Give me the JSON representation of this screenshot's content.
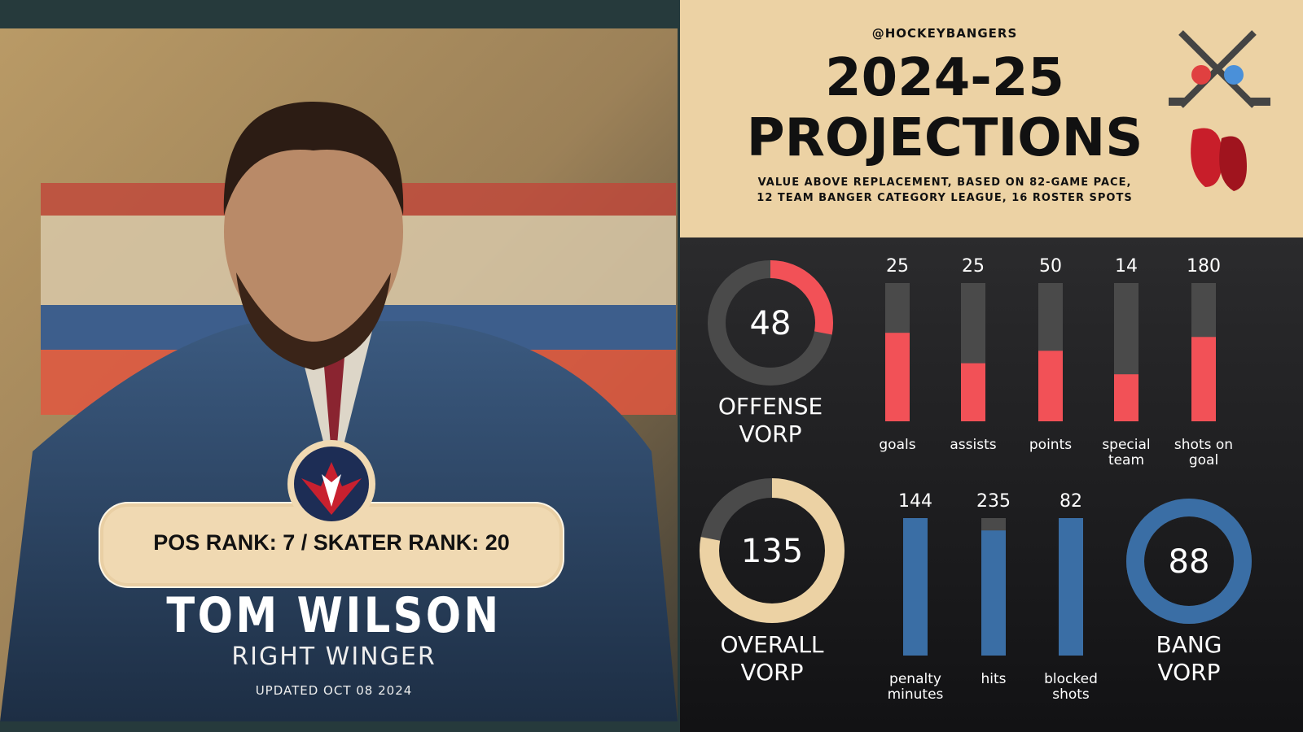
{
  "player": {
    "rank": "POS RANK: 7 / SKATER RANK: 20",
    "name": "TOM WILSON",
    "position": "RIGHT WINGER",
    "updated": "UPDATED OCT 08 2024"
  },
  "header": {
    "handle": "@HOCKEYBANGERS",
    "title_line1": "2024-25",
    "title_line2": "PROJECTIONS",
    "subtitle_line1": "VALUE ABOVE REPLACEMENT, BASED ON 82-GAME PACE,",
    "subtitle_line2": "12 TEAM BANGER CATEGORY LEAGUE, 16 ROSTER SPOTS"
  },
  "rings": [
    {
      "value": 48,
      "fill": 28,
      "color": "#f25157",
      "label_line1": "OFFENSE",
      "label_line2": "VORP"
    },
    {
      "value": 135,
      "fill": 78,
      "color": "#ecd2a4",
      "label_line1": "OVERALL",
      "label_line2": "VORP"
    },
    {
      "value": 88,
      "fill": 100,
      "color": "#3a6ea5",
      "label_line1": "BANG",
      "label_line2": "VORP"
    }
  ],
  "offense_bars": {
    "color": "#f25157",
    "items": [
      {
        "label": "goals",
        "value": 25,
        "fill": 64
      },
      {
        "label": "assists",
        "value": 25,
        "fill": 42
      },
      {
        "label": "points",
        "value": 50,
        "fill": 51
      },
      {
        "label": "special team",
        "value": 14,
        "fill": 34
      },
      {
        "label": "shots on goal",
        "value": 180,
        "fill": 61
      }
    ]
  },
  "bang_bars": {
    "color": "#3a6ea5",
    "items": [
      {
        "label": "penalty minutes",
        "value": 144,
        "fill": 100
      },
      {
        "label": "hits",
        "value": 235,
        "fill": 91
      },
      {
        "label": "blocked shots",
        "value": 82,
        "fill": 100
      }
    ]
  }
}
